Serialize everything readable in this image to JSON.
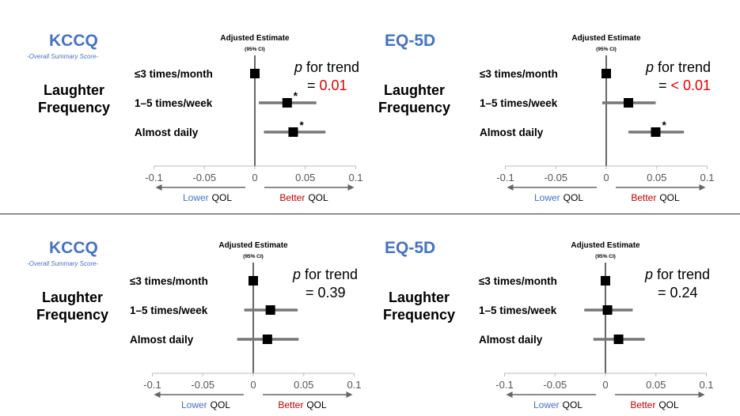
{
  "row_label": {
    "line1": "Laughter",
    "line2": "Frequency"
  },
  "header": {
    "line1": "Adjusted Estimate",
    "line2": "(95% CI)"
  },
  "arrows": {
    "lower_word": "Lower",
    "better_word": "Better",
    "qol": "QOL"
  },
  "colors": {
    "lower": "#4472c4",
    "better": "#c00000",
    "title": "#4472c4",
    "pval_sig": "#e00000"
  },
  "chart_data": [
    {
      "type": "forest",
      "title": "KCCQ",
      "subtitle": "-Overall Summary Score-",
      "categories": [
        "≤3 times/month",
        "1–5 times/week",
        "Almost daily"
      ],
      "estimates": [
        0,
        0.032,
        0.038
      ],
      "ci_low": [
        0,
        0.004,
        0.009
      ],
      "ci_high": [
        0,
        0.061,
        0.07
      ],
      "significant": [
        false,
        true,
        true
      ],
      "xlim": [
        -0.1,
        0.1
      ],
      "xticks": [
        "-0.1",
        "-0.05",
        "0",
        "0.05",
        "0.1"
      ],
      "p_trend": {
        "label": "p",
        "text": " for trend",
        "eq": "= ",
        "value": "0.01",
        "significant": true
      }
    },
    {
      "type": "forest",
      "title": "EQ-5D",
      "subtitle": "",
      "categories": [
        "≤3 times/month",
        "1–5 times/week",
        "Almost daily"
      ],
      "estimates": [
        0,
        0.022,
        0.049
      ],
      "ci_low": [
        0,
        -0.004,
        0.022
      ],
      "ci_high": [
        0,
        0.049,
        0.077
      ],
      "significant": [
        false,
        false,
        true
      ],
      "xlim": [
        -0.1,
        0.1
      ],
      "xticks": [
        "-0.1",
        "-0.05",
        "0",
        "0.05",
        "0.1"
      ],
      "p_trend": {
        "label": "p",
        "text": " for trend",
        "eq": "= ",
        "value": "< 0.01",
        "significant": true
      }
    },
    {
      "type": "forest",
      "title": "KCCQ",
      "subtitle": "-Overall Summary Score-",
      "categories": [
        "≤3 times/month",
        "1–5 times/week",
        "Almost daily"
      ],
      "estimates": [
        0,
        0.017,
        0.014
      ],
      "ci_low": [
        0,
        -0.009,
        -0.016
      ],
      "ci_high": [
        0,
        0.044,
        0.045
      ],
      "significant": [
        false,
        false,
        false
      ],
      "xlim": [
        -0.1,
        0.1
      ],
      "xticks": [
        "-0.1",
        "-0.05",
        "0",
        "0.05",
        "0.1"
      ],
      "p_trend": {
        "label": "p",
        "text": " for trend",
        "eq": "= ",
        "value": "0.39",
        "significant": false
      }
    },
    {
      "type": "forest",
      "title": "EQ-5D",
      "subtitle": "",
      "categories": [
        "≤3 times/month",
        "1–5 times/week",
        "Almost daily"
      ],
      "estimates": [
        0,
        0.002,
        0.013
      ],
      "ci_low": [
        0,
        -0.021,
        -0.012
      ],
      "ci_high": [
        0,
        0.027,
        0.039
      ],
      "significant": [
        false,
        false,
        false
      ],
      "xlim": [
        -0.1,
        0.1
      ],
      "xticks": [
        "-0.1",
        "-0.05",
        "0",
        "0.05",
        "0.1"
      ],
      "p_trend": {
        "label": "p",
        "text": " for trend",
        "eq": "= ",
        "value": "0.24",
        "significant": false
      }
    }
  ]
}
